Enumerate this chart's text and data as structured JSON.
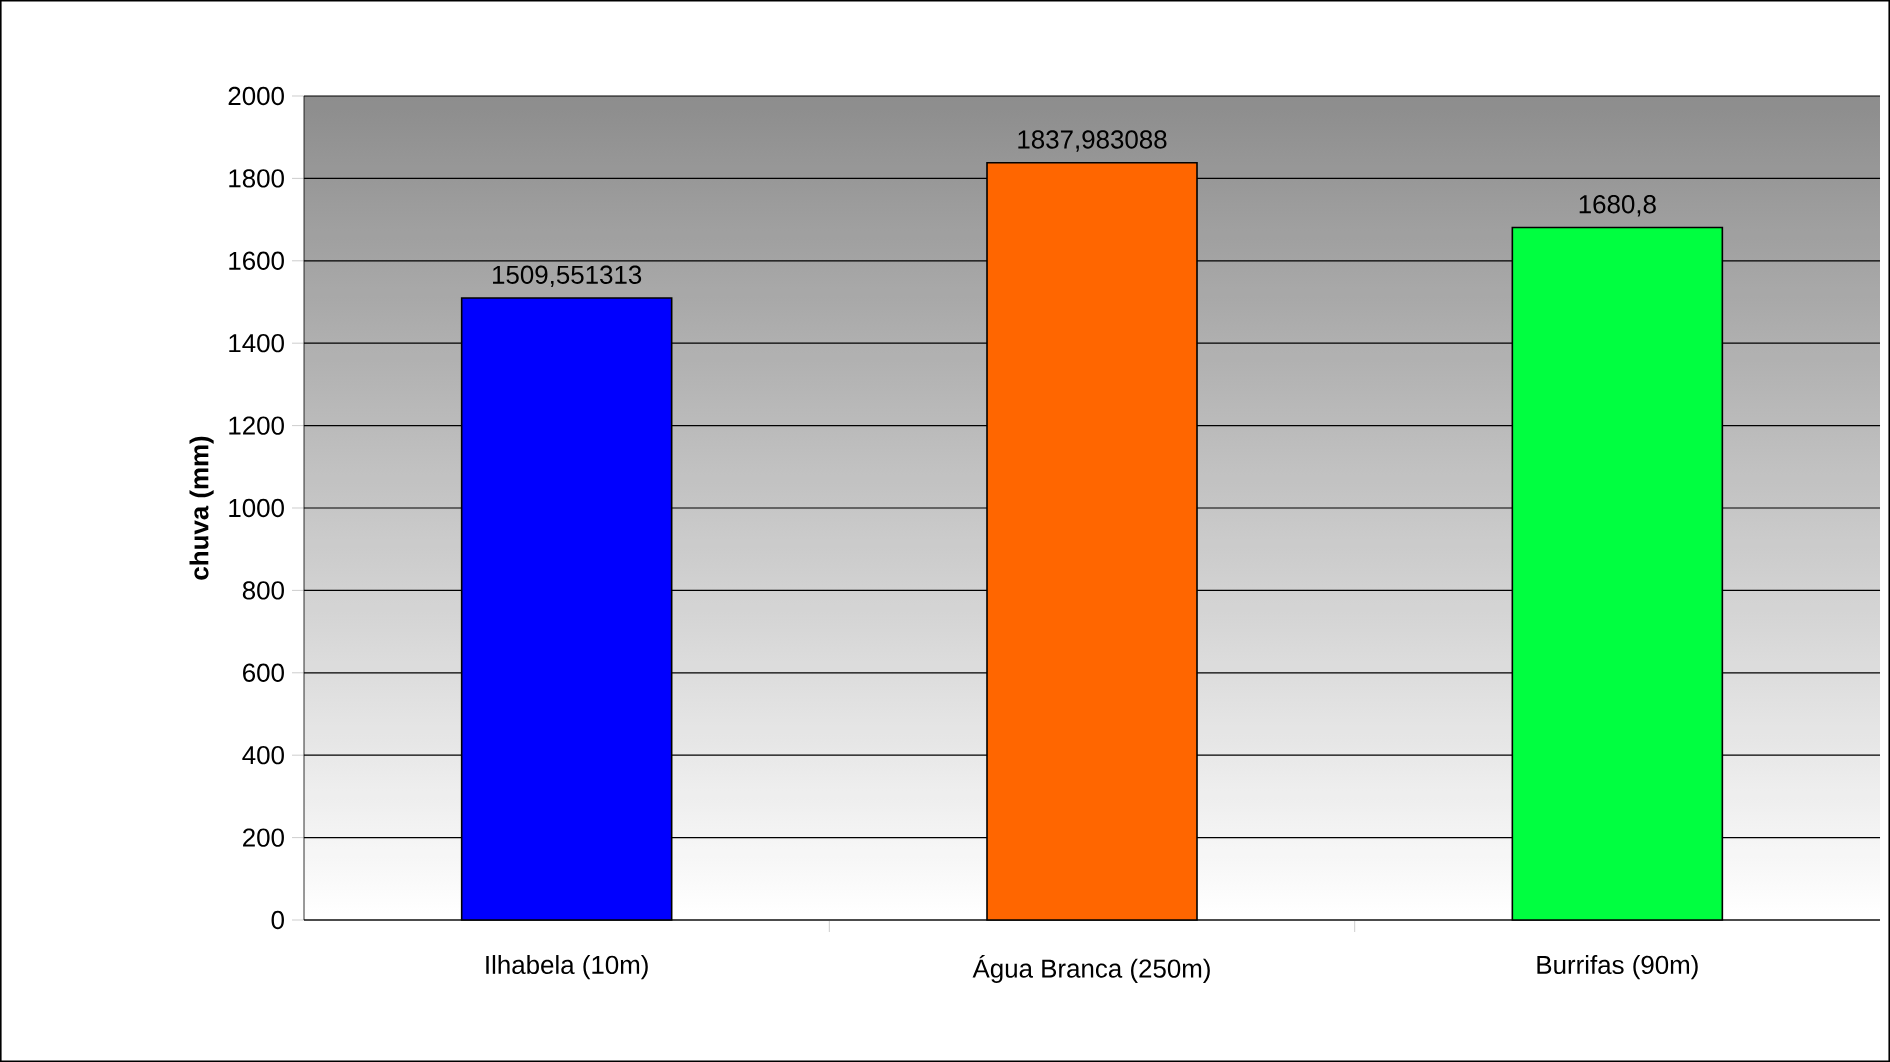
{
  "chart_data": {
    "type": "bar",
    "ylabel": "**chuva (mm)**",
    "categories": [
      "Ilhabela (10m)",
      "Água Branca (250m)",
      "Burrifas (90m)"
    ],
    "values": [
      1509.551313,
      1837.983088,
      1680.8
    ],
    "value_labels": [
      "1509,551313",
      "1837,983088",
      "1680,8"
    ],
    "colors": [
      "#0000ff",
      "#ff6600",
      "#00ff40"
    ],
    "ylim": [
      0,
      2000
    ],
    "yticks": [
      0,
      200,
      400,
      600,
      800,
      1000,
      1200,
      1400,
      1600,
      1800,
      2000
    ],
    "grid": "y"
  }
}
